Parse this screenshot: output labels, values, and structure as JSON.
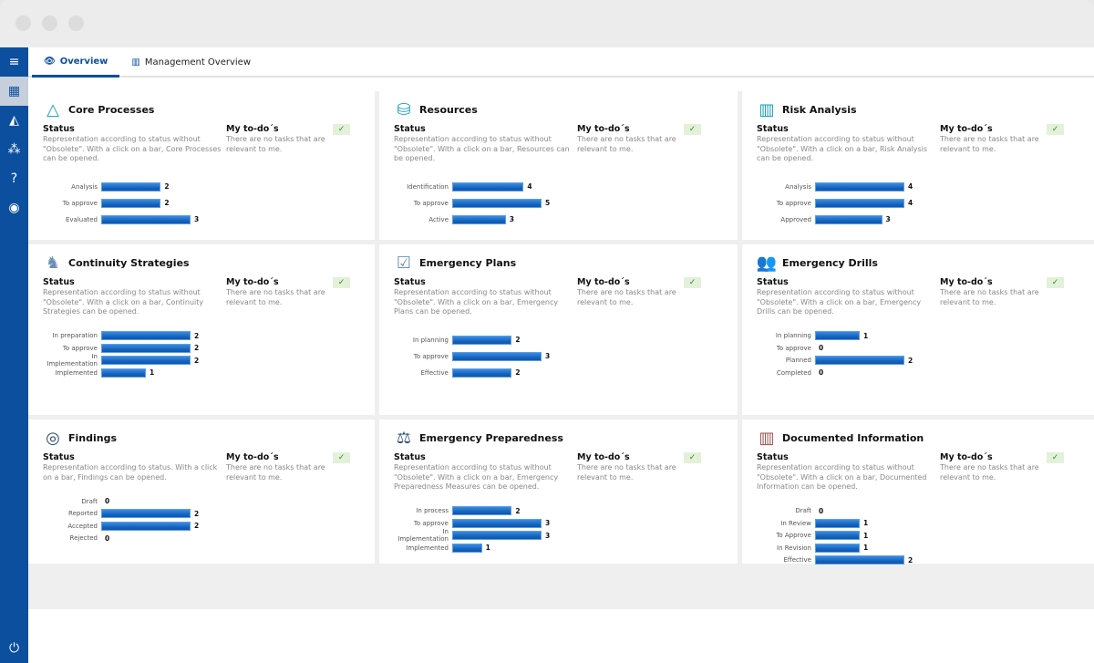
{
  "tabs": [
    {
      "label": "Overview",
      "icon": "eye-icon"
    },
    {
      "label": "Management Overview",
      "icon": "chart-icon"
    }
  ],
  "sidebar": [
    {
      "icon": "menu-icon",
      "g": "≡"
    },
    {
      "icon": "dashboard-icon",
      "g": "▦"
    },
    {
      "icon": "shapes-icon",
      "g": "◭"
    },
    {
      "icon": "network-icon",
      "g": "⁂"
    },
    {
      "icon": "help-icon",
      "g": "?"
    },
    {
      "icon": "user-icon",
      "g": "◉"
    }
  ],
  "power_icon": "⏻",
  "status_heading": "Status",
  "todo_heading": "My to-do´s",
  "todo_text": "There are no tasks that are relevant to me.",
  "cards": [
    {
      "title": "Core Processes",
      "icon": "shapes-icon",
      "g": "△",
      "color": "#1aa0b8",
      "desc": "Representation according to status without \"Obsolete\". With a click on a bar, Core Processes can be opened.",
      "bars": [
        [
          "Analysis",
          2
        ],
        [
          "To approve",
          2
        ],
        [
          "Evaluated",
          3
        ]
      ]
    },
    {
      "title": "Resources",
      "icon": "database-icon",
      "g": "⛁",
      "color": "#1aa0b8",
      "desc": "Representation according to status without \"Obsolete\". With a click on a bar, Resources can be opened.",
      "bars": [
        [
          "Identification",
          4
        ],
        [
          "To approve",
          5
        ],
        [
          "Active",
          3
        ]
      ]
    },
    {
      "title": "Risk Analysis",
      "icon": "bar-chart-icon",
      "g": "▥",
      "color": "#1aa0b8",
      "desc": "Representation according to status without \"Obsolete\". With a click on a bar, Risk Analysis can be opened.",
      "bars": [
        [
          "Analysis",
          4
        ],
        [
          "To approve",
          4
        ],
        [
          "Approved",
          3
        ]
      ]
    },
    {
      "title": "Continuity Strategies",
      "icon": "chess-knight-icon",
      "g": "♞",
      "color": "#6a8fb8",
      "desc": "Representation according to status without \"Obsolete\". With a click on a bar, Continuity Strategies can be opened.",
      "bars": [
        [
          "In preparation",
          2
        ],
        [
          "To approve",
          2
        ],
        [
          "In Implementation",
          2
        ],
        [
          "Implemented",
          1
        ]
      ]
    },
    {
      "title": "Emergency Plans",
      "icon": "checklist-icon",
      "g": "☑",
      "color": "#6a8fb8",
      "desc": "Representation according to status without \"Obsolete\". With a click on a bar, Emergency Plans can be opened.",
      "bars": [
        [
          "In planning",
          2
        ],
        [
          "To approve",
          3
        ],
        [
          "Effective",
          2
        ]
      ]
    },
    {
      "title": "Emergency Drills",
      "icon": "users-icon",
      "g": "👥",
      "color": "#2c4a70",
      "desc": "Representation according to status without \"Obsolete\". With a click on a bar, Emergency Drills can be opened.",
      "bars": [
        [
          "In planning",
          1
        ],
        [
          "To approve",
          0
        ],
        [
          "Planned",
          2
        ],
        [
          "Completed",
          0
        ]
      ]
    },
    {
      "title": "Findings",
      "icon": "target-icon",
      "g": "◎",
      "color": "#2c4a70",
      "desc": "Representation according to status. With a click on a bar, Findings can be opened.",
      "bars": [
        [
          "Draft",
          0
        ],
        [
          "Reported",
          2
        ],
        [
          "Accepted",
          2
        ],
        [
          "Rejected",
          0
        ]
      ]
    },
    {
      "title": "Emergency Preparedness",
      "icon": "scales-icon",
      "g": "⚖",
      "color": "#2c4a70",
      "desc": "Representation according to status without \"Obsolete\". With a click on a bar, Emergency Preparedness Measures can be opened.",
      "bars": [
        [
          "In process",
          2
        ],
        [
          "To approve",
          3
        ],
        [
          "In Implementation",
          3
        ],
        [
          "Implemented",
          1
        ]
      ]
    },
    {
      "title": "Documented Information",
      "icon": "books-icon",
      "g": "▥",
      "color": "#a05050",
      "desc": "Representation according to status without \"Obsolete\". With a click on a bar, Documented Information can be opened.",
      "bars": [
        [
          "Draft",
          0
        ],
        [
          "In Review",
          1
        ],
        [
          "To Approve",
          1
        ],
        [
          "In Revision",
          1
        ],
        [
          "Effective",
          2
        ]
      ]
    }
  ],
  "check_icon": "✓"
}
